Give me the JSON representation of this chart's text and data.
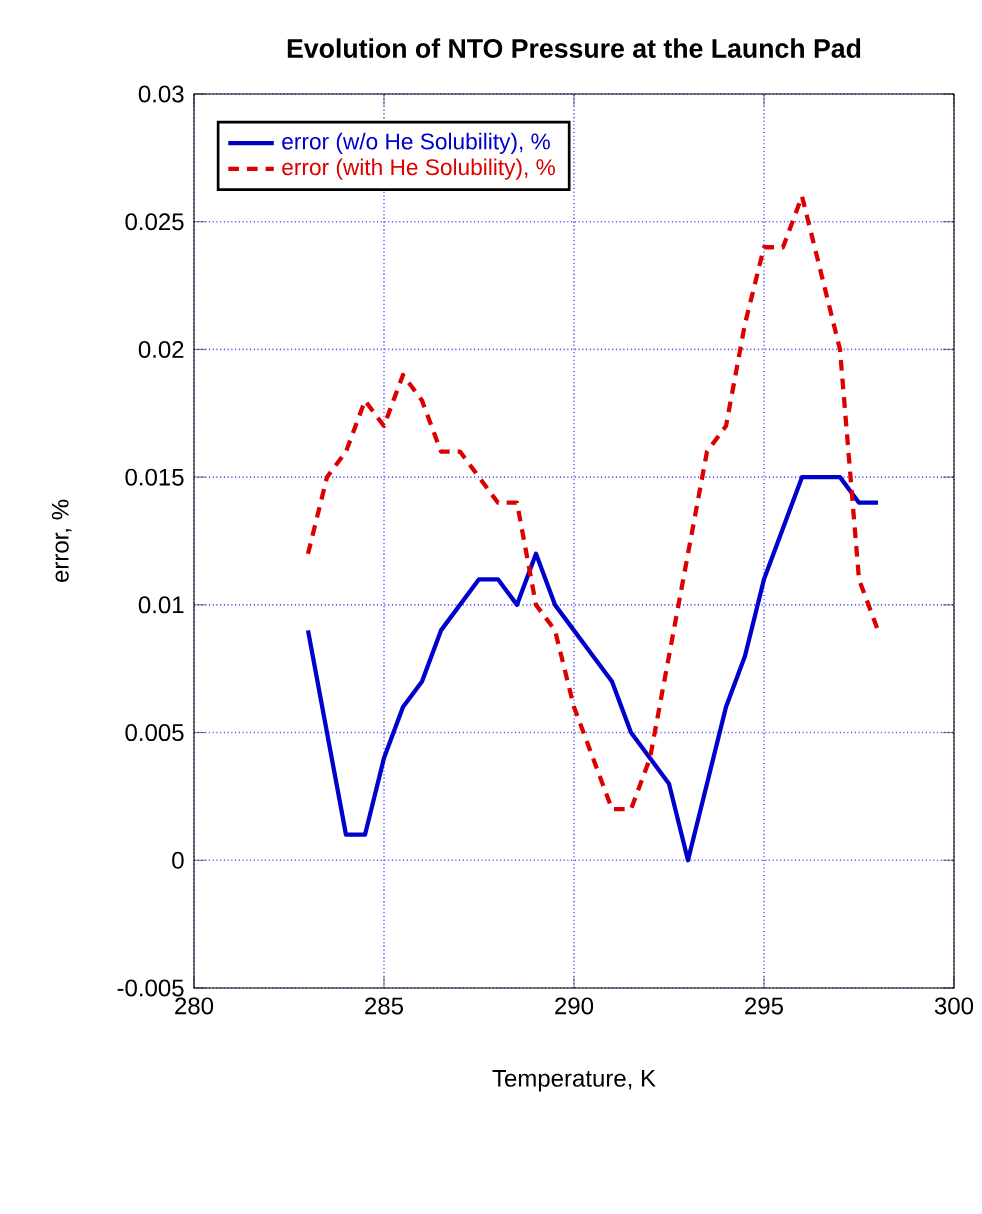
{
  "chart_data": {
    "type": "line",
    "title": "Evolution of NTO Pressure at the Launch Pad",
    "xlabel": "Temperature, K",
    "ylabel": "error, %",
    "x": [
      283,
      283.5,
      284,
      284.5,
      285,
      285.5,
      286,
      286.5,
      287,
      287.5,
      288,
      288.5,
      289,
      289.5,
      290,
      290.5,
      291,
      291.5,
      292,
      292.5,
      293,
      293.5,
      294,
      294.5,
      295,
      295.5,
      296,
      296.5,
      297,
      297.5,
      298
    ],
    "series": [
      {
        "name": "error (w/o He Solubility), %",
        "color": "#0000cc",
        "line_style": "solid",
        "values": [
          0.009,
          0.005,
          0.001,
          0.001,
          0.004,
          0.006,
          0.007,
          0.009,
          0.01,
          0.011,
          0.011,
          0.01,
          0.012,
          0.01,
          0.009,
          0.008,
          0.007,
          0.005,
          0.004,
          0.003,
          0.0,
          0.003,
          0.006,
          0.008,
          0.011,
          0.013,
          0.015,
          0.015,
          0.015,
          0.014,
          0.014
        ]
      },
      {
        "name": "error (with He Solubility), %",
        "color": "#dd0000",
        "line_style": "dashed",
        "values": [
          0.012,
          0.015,
          0.016,
          0.018,
          0.017,
          0.019,
          0.018,
          0.016,
          0.016,
          0.015,
          0.014,
          0.014,
          0.01,
          0.009,
          0.006,
          0.004,
          0.002,
          0.002,
          0.004,
          0.008,
          0.012,
          0.016,
          0.017,
          0.021,
          0.024,
          0.024,
          0.026,
          0.023,
          0.02,
          0.011,
          0.009
        ]
      }
    ],
    "xlim": [
      280,
      300
    ],
    "xticks": [
      280,
      285,
      290,
      295,
      300
    ],
    "ylim": [
      -0.005,
      0.03
    ],
    "yticks": [
      -0.005,
      0,
      0.005,
      0.01,
      0.015,
      0.02,
      0.025,
      0.03
    ],
    "grid": true,
    "legend": "top left",
    "marker": "none"
  }
}
